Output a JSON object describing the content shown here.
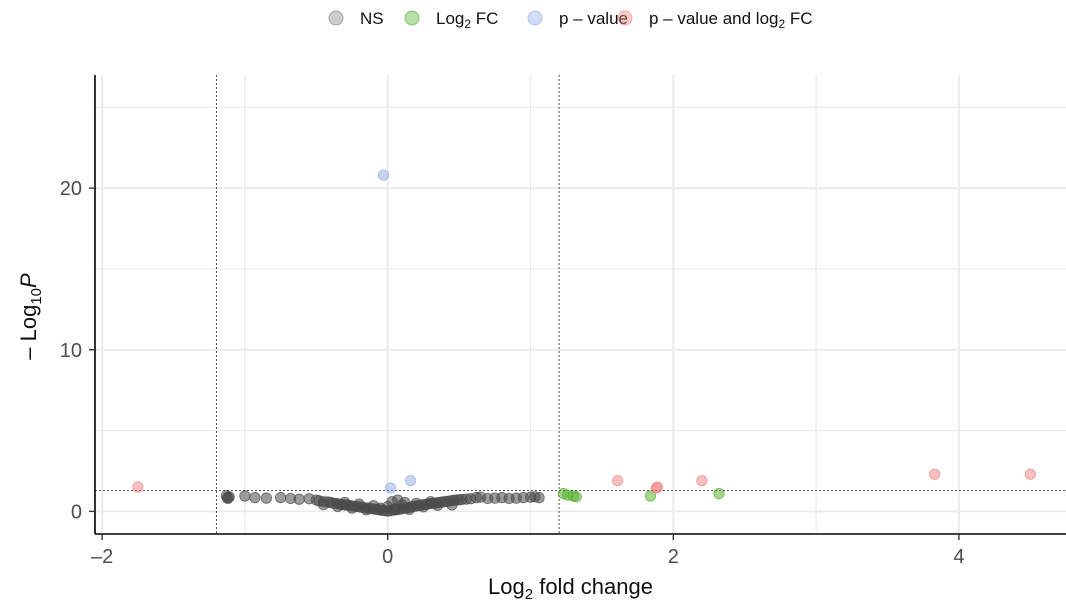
{
  "chart_data": {
    "type": "scatter",
    "title": "",
    "xlabel": {
      "main": "Log",
      "sub": "2",
      "rest": " fold change"
    },
    "ylabel": {
      "pre": "– Log",
      "sub": "10",
      "italic": "P"
    },
    "xlim": [
      -2.05,
      4.75
    ],
    "ylim": [
      -1.4,
      27
    ],
    "x_ticks": [
      {
        "value": -2,
        "label": "–2"
      },
      {
        "value": 0,
        "label": "0"
      },
      {
        "value": 2,
        "label": "2"
      },
      {
        "value": 4,
        "label": "4"
      }
    ],
    "y_ticks": [
      {
        "value": 0,
        "label": "0"
      },
      {
        "value": 10,
        "label": "10"
      },
      {
        "value": 20,
        "label": "20"
      }
    ],
    "grid": true,
    "cutoffs": {
      "fc": [
        -1.2,
        1.2
      ],
      "p": 1.3
    },
    "legend": {
      "position": "top",
      "items": [
        {
          "key": "ns",
          "label": "NS",
          "color": "#7f7f7f"
        },
        {
          "key": "fc",
          "label": "Log",
          "sub": "2",
          "rest": " FC",
          "color": "#4dac26"
        },
        {
          "key": "p",
          "label": "p – value",
          "color": "#8fa8e6"
        },
        {
          "key": "both",
          "label": "p – value and log",
          "sub": "2",
          "rest": " FC",
          "color": "#f08080"
        }
      ]
    },
    "series": [
      {
        "name": "NS",
        "color": "#4a4a4a",
        "points": [
          [
            -1.13,
            0.95
          ],
          [
            -1.12,
            0.85
          ],
          [
            -1.12,
            0.8
          ],
          [
            -1.11,
            0.9
          ],
          [
            -1.0,
            0.95
          ],
          [
            -0.93,
            0.85
          ],
          [
            -0.85,
            0.82
          ],
          [
            -0.75,
            0.85
          ],
          [
            -0.68,
            0.8
          ],
          [
            -0.62,
            0.75
          ],
          [
            -0.55,
            0.78
          ],
          [
            -0.5,
            0.7
          ],
          [
            -0.48,
            0.65
          ],
          [
            -0.45,
            0.6
          ],
          [
            -0.42,
            0.58
          ],
          [
            -0.4,
            0.55
          ],
          [
            -0.38,
            0.5
          ],
          [
            -0.36,
            0.5
          ],
          [
            -0.34,
            0.45
          ],
          [
            -0.32,
            0.42
          ],
          [
            -0.3,
            0.4
          ],
          [
            -0.28,
            0.38
          ],
          [
            -0.26,
            0.35
          ],
          [
            -0.24,
            0.32
          ],
          [
            -0.22,
            0.3
          ],
          [
            -0.2,
            0.28
          ],
          [
            -0.18,
            0.25
          ],
          [
            -0.16,
            0.22
          ],
          [
            -0.14,
            0.2
          ],
          [
            -0.12,
            0.18
          ],
          [
            -0.1,
            0.15
          ],
          [
            -0.08,
            0.12
          ],
          [
            -0.06,
            0.1
          ],
          [
            -0.04,
            0.07
          ],
          [
            -0.02,
            0.04
          ],
          [
            0.0,
            0.02
          ],
          [
            0.02,
            0.04
          ],
          [
            0.04,
            0.08
          ],
          [
            0.06,
            0.1
          ],
          [
            0.08,
            0.13
          ],
          [
            0.1,
            0.16
          ],
          [
            0.12,
            0.2
          ],
          [
            0.14,
            0.22
          ],
          [
            0.16,
            0.26
          ],
          [
            0.18,
            0.3
          ],
          [
            0.2,
            0.33
          ],
          [
            0.22,
            0.36
          ],
          [
            0.24,
            0.4
          ],
          [
            0.26,
            0.42
          ],
          [
            0.28,
            0.45
          ],
          [
            0.3,
            0.48
          ],
          [
            0.32,
            0.5
          ],
          [
            0.34,
            0.52
          ],
          [
            0.36,
            0.55
          ],
          [
            0.38,
            0.58
          ],
          [
            0.4,
            0.6
          ],
          [
            0.42,
            0.62
          ],
          [
            0.44,
            0.65
          ],
          [
            0.46,
            0.68
          ],
          [
            0.48,
            0.7
          ],
          [
            0.5,
            0.72
          ],
          [
            0.52,
            0.74
          ],
          [
            0.55,
            0.76
          ],
          [
            0.58,
            0.78
          ],
          [
            0.62,
            0.85
          ],
          [
            0.65,
            0.88
          ],
          [
            0.7,
            0.8
          ],
          [
            0.75,
            0.82
          ],
          [
            0.8,
            0.85
          ],
          [
            0.85,
            0.8
          ],
          [
            0.9,
            0.82
          ],
          [
            0.95,
            0.85
          ],
          [
            1.0,
            0.88
          ],
          [
            1.03,
            0.9
          ],
          [
            1.06,
            0.85
          ],
          [
            -0.35,
            0.3
          ],
          [
            -0.25,
            0.2
          ],
          [
            -0.15,
            0.1
          ],
          [
            -0.05,
            0.2
          ],
          [
            0.05,
            0.15
          ],
          [
            0.15,
            0.12
          ],
          [
            0.25,
            0.28
          ],
          [
            0.35,
            0.38
          ],
          [
            0.1,
            0.4
          ],
          [
            -0.1,
            0.35
          ],
          [
            0.0,
            0.3
          ],
          [
            0.2,
            0.5
          ],
          [
            -0.2,
            0.45
          ],
          [
            0.3,
            0.6
          ],
          [
            -0.3,
            0.55
          ],
          [
            0.03,
            0.6
          ],
          [
            0.07,
            0.7
          ],
          [
            0.12,
            0.55
          ],
          [
            0.45,
            0.4
          ],
          [
            -0.45,
            0.42
          ]
        ]
      },
      {
        "name": "Log₂ FC",
        "color": "#4dac26",
        "points": [
          [
            1.23,
            1.1
          ],
          [
            1.26,
            1.0
          ],
          [
            1.3,
            0.95
          ],
          [
            1.32,
            0.9
          ],
          [
            1.84,
            0.95
          ],
          [
            2.32,
            1.1
          ]
        ]
      },
      {
        "name": "p – value",
        "color": "#8fa8e6",
        "points": [
          [
            -0.03,
            20.8
          ],
          [
            0.16,
            1.9
          ],
          [
            0.02,
            1.45
          ]
        ]
      },
      {
        "name": "p – value and log₂ FC",
        "color": "#f08080",
        "points": [
          [
            -1.75,
            1.5
          ],
          [
            1.61,
            1.9
          ],
          [
            1.88,
            1.45
          ],
          [
            1.89,
            1.5
          ],
          [
            2.2,
            1.9
          ],
          [
            3.83,
            2.3
          ],
          [
            4.5,
            2.3
          ]
        ]
      }
    ]
  }
}
